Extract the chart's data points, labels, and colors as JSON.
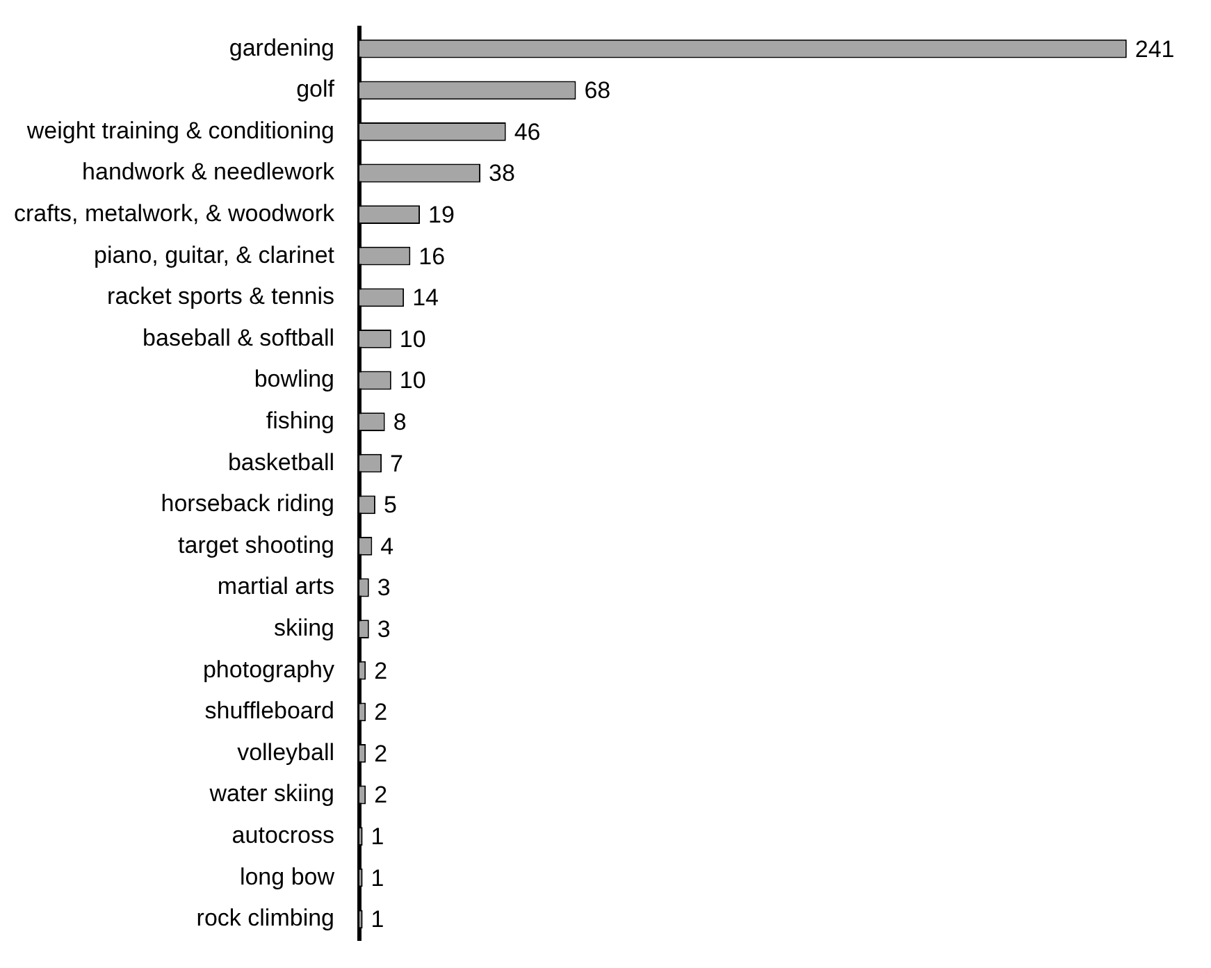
{
  "chart_data": {
    "type": "bar",
    "orientation": "horizontal",
    "categories": [
      "gardening",
      "golf",
      "weight training & conditioning",
      "handwork & needlework",
      "crafts, metalwork, & woodwork",
      "piano, guitar, & clarinet",
      "racket sports & tennis",
      "baseball & softball",
      "bowling",
      "fishing",
      "basketball",
      "horseback riding",
      "target shooting",
      "martial arts",
      "skiing",
      "photography",
      "shuffleboard",
      "volleyball",
      "water skiing",
      "autocross",
      "long bow",
      "rock climbing"
    ],
    "values": [
      241,
      68,
      46,
      38,
      19,
      16,
      14,
      10,
      10,
      8,
      7,
      5,
      4,
      3,
      3,
      2,
      2,
      2,
      2,
      1,
      1,
      1
    ],
    "color": "#a6a6a6",
    "data_labels": true,
    "grid": false,
    "tick_labels": "y"
  }
}
